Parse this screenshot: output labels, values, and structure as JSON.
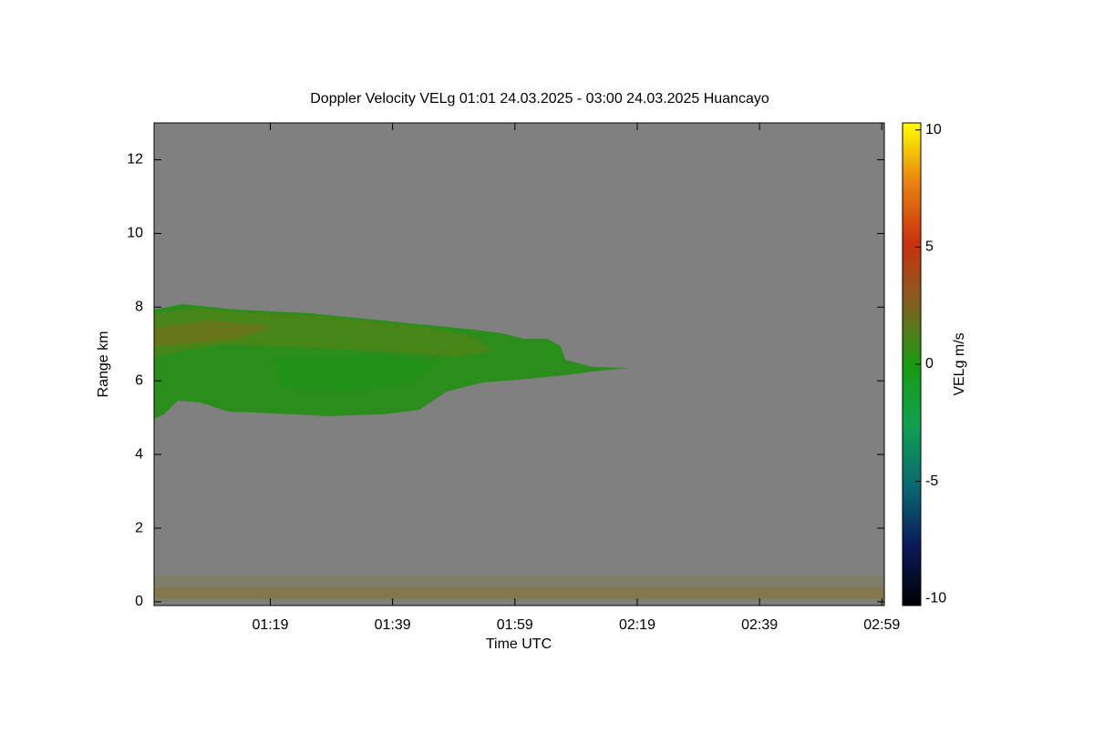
{
  "chart_data": {
    "type": "heatmap",
    "title": "Doppler Velocity VELg   01:01 24.03.2025 - 03:00 24.03.2025 Huancayo",
    "xlabel": "Time UTC",
    "ylabel": "Range km",
    "xlim": [
      60,
      179.4
    ],
    "xticks": [
      {
        "value": 79,
        "label": "01:19"
      },
      {
        "value": 99,
        "label": "01:39"
      },
      {
        "value": 119,
        "label": "01:59"
      },
      {
        "value": 139,
        "label": "02:19"
      },
      {
        "value": 159,
        "label": "02:39"
      },
      {
        "value": 179,
        "label": "02:59"
      }
    ],
    "ylim": [
      -0.1,
      13
    ],
    "yticks": [
      0,
      2,
      4,
      6,
      8,
      10,
      12
    ],
    "colorbar": {
      "label": "VELg m/s",
      "lim": [
        -10.3,
        10.3
      ],
      "ticks": [
        -10,
        -5,
        0,
        5,
        10
      ],
      "colormap": [
        "#000000",
        "#0a1a5a",
        "#0a6a70",
        "#10a050",
        "#1a9a10",
        "#806020",
        "#c83010",
        "#e88010",
        "#ffff00"
      ]
    },
    "background": "#808080"
  }
}
